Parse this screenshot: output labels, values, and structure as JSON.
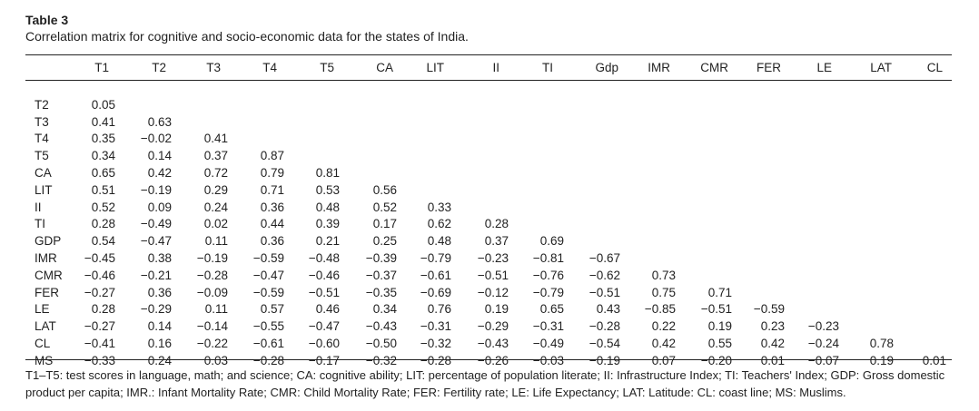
{
  "table": {
    "label": "Table 3",
    "caption": "Correlation matrix for cognitive and socio-economic data for the states of India.",
    "columns": [
      "T1",
      "T2",
      "T3",
      "T4",
      "T5",
      "CA",
      "LIT",
      "II",
      "TI",
      "Gdp",
      "IMR",
      "CMR",
      "FER",
      "LE",
      "LAT",
      "CL"
    ],
    "rows": [
      {
        "label": "T2",
        "cells": [
          "0.05"
        ]
      },
      {
        "label": "T3",
        "cells": [
          "0.41",
          "0.63"
        ]
      },
      {
        "label": "T4",
        "cells": [
          "0.35",
          "−0.02",
          "0.41"
        ]
      },
      {
        "label": "T5",
        "cells": [
          "0.34",
          "0.14",
          "0.37",
          "0.87"
        ]
      },
      {
        "label": "CA",
        "cells": [
          "0.65",
          "0.42",
          "0.72",
          "0.79",
          "0.81"
        ]
      },
      {
        "label": "LIT",
        "cells": [
          "0.51",
          "−0.19",
          "0.29",
          "0.71",
          "0.53",
          "0.56"
        ]
      },
      {
        "label": "II",
        "cells": [
          "0.52",
          "0.09",
          "0.24",
          "0.36",
          "0.48",
          "0.52",
          "0.33"
        ]
      },
      {
        "label": "TI",
        "cells": [
          "0.28",
          "−0.49",
          "0.02",
          "0.44",
          "0.39",
          "0.17",
          "0.62",
          "0.28"
        ]
      },
      {
        "label": "GDP",
        "cells": [
          "0.54",
          "−0.47",
          "0.11",
          "0.36",
          "0.21",
          "0.25",
          "0.48",
          "0.37",
          "0.69"
        ]
      },
      {
        "label": "IMR",
        "cells": [
          "−0.45",
          "0.38",
          "−0.19",
          "−0.59",
          "−0.48",
          "−0.39",
          "−0.79",
          "−0.23",
          "−0.81",
          "−0.67"
        ]
      },
      {
        "label": "CMR",
        "cells": [
          "−0.46",
          "−0.21",
          "−0.28",
          "−0.47",
          "−0.46",
          "−0.37",
          "−0.61",
          "−0.51",
          "−0.76",
          "−0.62",
          "0.73"
        ]
      },
      {
        "label": "FER",
        "cells": [
          "−0.27",
          "0.36",
          "−0.09",
          "−0.59",
          "−0.51",
          "−0.35",
          "−0.69",
          "−0.12",
          "−0.79",
          "−0.51",
          "0.75",
          "0.71"
        ]
      },
      {
        "label": "LE",
        "cells": [
          "0.28",
          "−0.29",
          "0.11",
          "0.57",
          "0.46",
          "0.34",
          "0.76",
          "0.19",
          "0.65",
          "0.43",
          "−0.85",
          "−0.51",
          "−0.59"
        ]
      },
      {
        "label": "LAT",
        "cells": [
          "−0.27",
          "0.14",
          "−0.14",
          "−0.55",
          "−0.47",
          "−0.43",
          "−0.31",
          "−0.29",
          "−0.31",
          "−0.28",
          "0.22",
          "0.19",
          "0.23",
          "−0.23"
        ]
      },
      {
        "label": "CL",
        "cells": [
          "−0.41",
          "0.16",
          "−0.22",
          "−0.61",
          "−0.60",
          "−0.50",
          "−0.32",
          "−0.43",
          "−0.49",
          "−0.54",
          "0.42",
          "0.55",
          "0.42",
          "−0.24",
          "0.78"
        ]
      },
      {
        "label": "MS",
        "cells": [
          "−0.33",
          "0.24",
          "0.03",
          "−0.28",
          "−0.17",
          "−0.32",
          "−0.28",
          "−0.26",
          "−0.03",
          "−0.19",
          "0.07",
          "−0.20",
          "0.01",
          "−0.07",
          "0.19",
          "0.01"
        ]
      }
    ],
    "footnote": "T1–T5: test scores in language, math; and science; CA: cognitive ability; LIT: percentage of population literate; II: Infrastructure Index; TI: Teachers' Index; GDP: Gross domestic product per capita; IMR.: Infant Mortality Rate; CMR: Child Mortality Rate; FER: Fertility rate; LE: Life Expectancy; LAT: Latitude: CL: coast line; MS: Muslims."
  }
}
